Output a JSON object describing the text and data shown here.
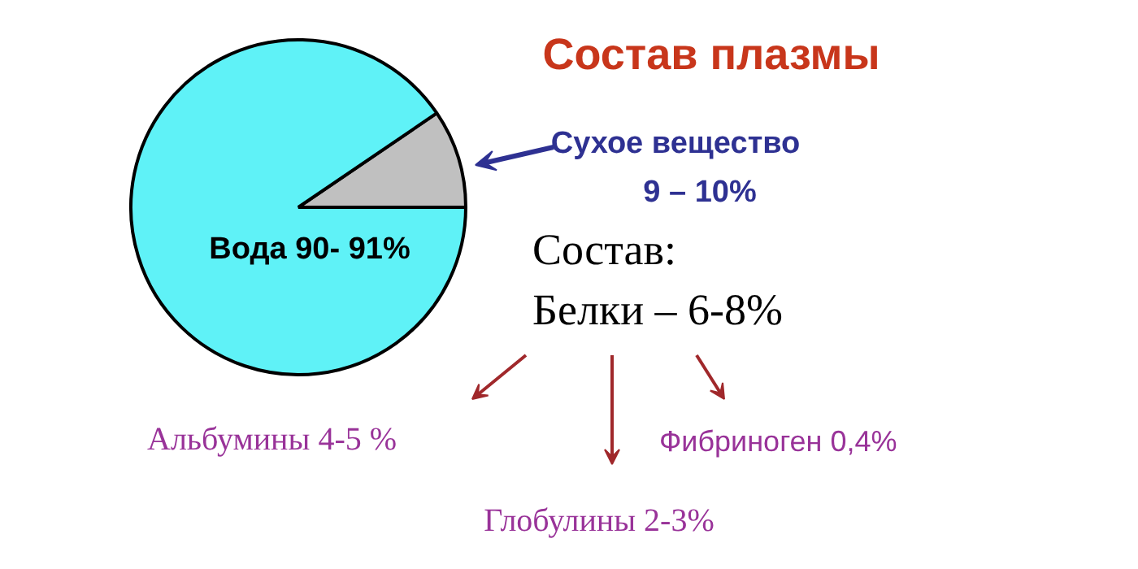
{
  "chart_data": {
    "type": "pie",
    "title": "Состав плазмы",
    "categories": [
      "Вода",
      "Сухое вещество"
    ],
    "values": [
      90.5,
      9.5
    ],
    "value_labels": [
      "90- 91%",
      "9 – 10%"
    ],
    "colors": [
      "#5ff2f7",
      "#c0c0c0"
    ],
    "annotations": [
      "Состав:",
      "Белки – 6-8%",
      "Альбумины 4-5 %",
      "Глобулины 2-3%",
      "Фибриноген 0,4%"
    ]
  }
}
